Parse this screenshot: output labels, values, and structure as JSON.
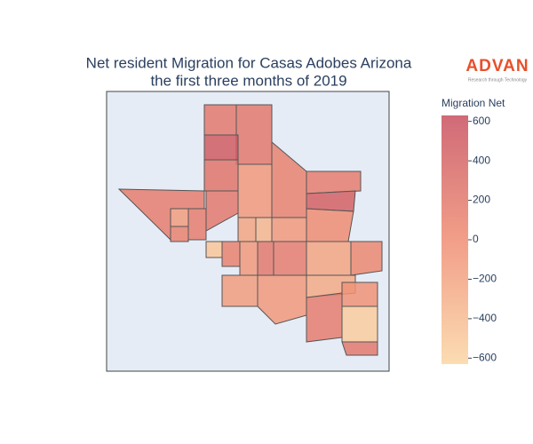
{
  "chart_data": {
    "type": "choropleth",
    "title": [
      "Net resident Migration for Casas Adobes Arizona",
      "the first three months of 2019"
    ],
    "colorbar_title": "Migration Net",
    "values": [
      200,
      200,
      500,
      250,
      150,
      -150,
      150,
      100,
      200,
      -100,
      100,
      150,
      450,
      0,
      -500,
      -200,
      -350,
      -100,
      100,
      -100,
      200,
      150,
      -200,
      50,
      -150,
      -100,
      -250,
      150,
      -50,
      -550,
      200
    ],
    "colorscale": [
      "#fbd6a4",
      "#ef8d73",
      "#c8505f"
    ],
    "colorlim": [
      -630,
      630
    ],
    "colorticks": [
      {
        "value": -600,
        "label": "−600"
      },
      {
        "value": -400,
        "label": "−400"
      },
      {
        "value": -200,
        "label": "−200"
      },
      0,
      200,
      400,
      600
    ],
    "map_background": "#e5ecf6",
    "logo": {
      "name": "ADVAN",
      "tagline": "Research through Technology",
      "color": "#e8502a"
    }
  }
}
